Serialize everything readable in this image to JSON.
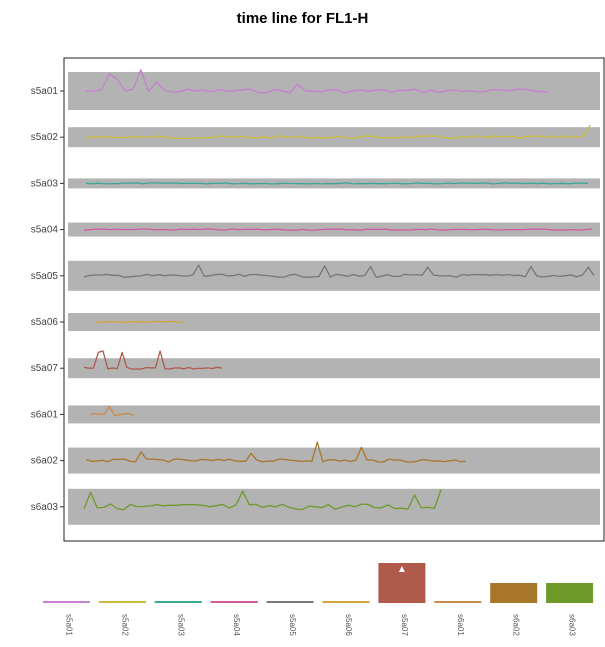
{
  "chart_data": {
    "type": "line",
    "title": "time line for FL1-H",
    "xlabel": "",
    "ylabel": "",
    "grid": false,
    "series": [
      {
        "name": "s5a01",
        "color": "#c77fd1",
        "n": 60,
        "amp": 0.9,
        "spikes": [
          [
            3,
            2.6
          ],
          [
            4,
            1.8
          ],
          [
            7,
            3.2
          ],
          [
            9,
            1.4
          ],
          [
            27,
            1.0
          ]
        ]
      },
      {
        "name": "s5a02",
        "color": "#c9bb3c",
        "n": 80,
        "amp": 0.6,
        "spikes": [
          [
            79,
            1.8
          ]
        ]
      },
      {
        "name": "s5a03",
        "color": "#3aa994",
        "n": 80,
        "amp": 0.25,
        "spikes": []
      },
      {
        "name": "s5a04",
        "color": "#d15a9f",
        "n": 80,
        "amp": 0.3,
        "spikes": []
      },
      {
        "name": "s5a05",
        "color": "#777777",
        "n": 90,
        "amp": 0.7,
        "spikes": [
          [
            20,
            1.6
          ],
          [
            42,
            1.5
          ],
          [
            50,
            1.4
          ],
          [
            60,
            1.3
          ],
          [
            78,
            1.4
          ],
          [
            88,
            1.3
          ]
        ]
      },
      {
        "name": "s5a06",
        "color": "#d6a53a",
        "n": 20,
        "amp": 0.4,
        "spikes": []
      },
      {
        "name": "s5a07",
        "color": "#b05a4c",
        "n": 30,
        "amp": 0.5,
        "spikes": [
          [
            3,
            2.4
          ],
          [
            4,
            2.6
          ],
          [
            8,
            2.4
          ],
          [
            16,
            2.6
          ]
        ]
      },
      {
        "name": "s6a01",
        "color": "#c88a4a",
        "n": 10,
        "amp": 0.5,
        "spikes": [
          [
            4,
            1.2
          ]
        ]
      },
      {
        "name": "s6a02",
        "color": "#a8762b",
        "n": 70,
        "amp": 0.7,
        "spikes": [
          [
            42,
            2.8
          ],
          [
            50,
            2.0
          ],
          [
            10,
            1.3
          ],
          [
            30,
            1.1
          ]
        ]
      },
      {
        "name": "s6a03",
        "color": "#6e9a2a",
        "n": 55,
        "amp": 1.4,
        "spikes": [
          [
            1,
            2.2
          ],
          [
            24,
            2.4
          ],
          [
            54,
            2.6
          ],
          [
            50,
            1.8
          ]
        ]
      }
    ],
    "rows": [
      "s5a01",
      "s5a02",
      "s5a03",
      "s5a04",
      "s5a05",
      "s5a06",
      "s5a07",
      "s6a01",
      "s6a02",
      "s6a03"
    ],
    "bottom_bars": [
      {
        "label": "s5a01",
        "value": 0.03
      },
      {
        "label": "s5a02",
        "value": 0.03
      },
      {
        "label": "s5a03",
        "value": 0.03
      },
      {
        "label": "s5a04",
        "value": 0.03
      },
      {
        "label": "s5a05",
        "value": 0.03
      },
      {
        "label": "s5a06",
        "value": 0.03
      },
      {
        "label": "s5a07",
        "value": 1.0
      },
      {
        "label": "s6a01",
        "value": 0.03
      },
      {
        "label": "s6a02",
        "value": 0.5
      },
      {
        "label": "s6a03",
        "value": 0.5
      }
    ]
  }
}
